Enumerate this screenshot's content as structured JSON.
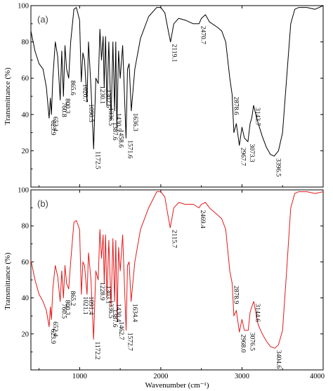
{
  "figure": {
    "x_axis_title": "Wavenumber (cm⁻¹)",
    "y_axis_title": "Transmittance (%)",
    "x_ticks": [
      "1000",
      "2000",
      "3000",
      "4000"
    ],
    "y_ticks_top": [
      "20",
      "40",
      "60",
      "80",
      "100"
    ],
    "y_ticks_bottom": [
      "20",
      "40",
      "60",
      "80",
      "100"
    ]
  },
  "chart_data": [
    {
      "type": "line",
      "panel_label": "(a)",
      "xlim": [
        400,
        4000
      ],
      "ylim": [
        0,
        100
      ],
      "line_color": "#000000",
      "grid": false,
      "series": [
        {
          "x": [
            400,
            450,
            500,
            550,
            590,
            623.9,
            640,
            652.4,
            670,
            700,
            730,
            760.8,
            780,
            800.3,
            820,
            840,
            865.6,
            890,
            930,
            960,
            1000,
            1020.7,
            1040,
            1060,
            1090.5,
            1110,
            1140,
            1172.5,
            1200,
            1230.1,
            1250,
            1270,
            1290,
            1302.6,
            1320,
            1336.5,
            1360,
            1387.6,
            1410,
            1430.5,
            1445,
            1458.6,
            1480,
            1500,
            1530,
            1571.6,
            1590,
            1610,
            1636.3,
            1680,
            1750,
            1850,
            1950,
            2000,
            2050,
            2080,
            2119.1,
            2160,
            2220,
            2300,
            2400,
            2470.7,
            2500,
            2550,
            2600,
            2700,
            2750,
            2800,
            2850,
            2878.6,
            2900,
            2930,
            2967.7,
            3000,
            3030,
            3073.3,
            3100,
            3120,
            3143.7,
            3170,
            3200,
            3250,
            3300,
            3350,
            3396.5,
            3450,
            3500,
            3550,
            3600,
            3650,
            3700,
            3800,
            3900,
            4000
          ],
          "y": [
            86,
            75,
            68,
            65,
            55,
            38,
            49,
            40,
            60,
            80,
            72,
            48,
            75,
            50,
            78,
            65,
            60,
            80,
            98,
            99,
            92,
            58,
            74,
            70,
            47,
            80,
            55,
            21,
            60,
            57,
            87,
            70,
            83,
            55,
            83,
            45,
            80,
            37,
            80,
            42,
            80,
            33,
            75,
            60,
            78,
            27,
            65,
            68,
            42,
            65,
            82,
            94,
            99,
            99,
            96,
            89,
            80,
            90,
            93,
            92,
            90,
            90,
            93,
            95,
            91,
            88,
            86,
            80,
            60,
            51,
            30,
            35,
            23,
            33,
            27,
            25,
            35,
            38,
            45,
            40,
            35,
            28,
            22,
            18,
            17,
            20,
            30,
            60,
            90,
            98,
            99,
            99,
            98,
            100
          ]
        }
      ],
      "annotations": [
        "623.9",
        "652.4",
        "760.8",
        "800.3",
        "865.6",
        "1020.7",
        "1090.5",
        "1172.5",
        "1230.1",
        "1302.6",
        "1336.5",
        "1387.6",
        "1430.5",
        "1458.6",
        "1571.6",
        "1636.3",
        "2119.1",
        "2470.7",
        "2878.6",
        "2967.7",
        "3073.3",
        "3143.7",
        "3396.5"
      ]
    },
    {
      "type": "line",
      "panel_label": "(b)",
      "xlim": [
        400,
        4000
      ],
      "ylim": [
        0,
        100
      ],
      "line_color": "#e41a1c",
      "grid": false,
      "series": [
        {
          "x": [
            400,
            450,
            500,
            550,
            590,
            623.9,
            640,
            652.4,
            670,
            700,
            730,
            760.5,
            780,
            800.3,
            820,
            840,
            865.2,
            890,
            930,
            960,
            1000,
            1021.1,
            1040,
            1060,
            1091.4,
            1110,
            1140,
            1172.2,
            1200,
            1228.9,
            1250,
            1270,
            1290,
            1303.1,
            1320,
            1336.5,
            1360,
            1387.6,
            1410,
            1430.4,
            1445,
            1462.7,
            1480,
            1500,
            1530,
            1572.7,
            1590,
            1610,
            1634.4,
            1680,
            1750,
            1850,
            1950,
            2000,
            2050,
            2080,
            2115.7,
            2160,
            2220,
            2300,
            2400,
            2469.4,
            2500,
            2550,
            2600,
            2700,
            2750,
            2800,
            2850,
            2878.9,
            2900,
            2930,
            2968.0,
            3000,
            3030,
            3076.5,
            3100,
            3120,
            3144.6,
            3170,
            3200,
            3250,
            3300,
            3350,
            3404.6,
            3450,
            3500,
            3550,
            3600,
            3650,
            3700,
            3800,
            3900,
            4000
          ],
          "y": [
            61,
            50,
            42,
            38,
            33,
            24,
            35,
            28,
            45,
            58,
            52,
            38,
            55,
            40,
            58,
            48,
            45,
            60,
            82,
            83,
            78,
            42,
            60,
            58,
            42,
            65,
            50,
            17,
            55,
            50,
            78,
            62,
            75,
            48,
            75,
            40,
            72,
            35,
            73,
            38,
            72,
            28,
            68,
            55,
            75,
            22,
            58,
            60,
            38,
            60,
            78,
            90,
            99,
            99,
            96,
            88,
            79,
            90,
            93,
            92,
            92,
            90,
            92,
            93,
            90,
            86,
            84,
            78,
            55,
            48,
            30,
            33,
            21,
            28,
            22,
            22,
            32,
            35,
            38,
            32,
            25,
            20,
            16,
            13,
            12,
            14,
            22,
            55,
            90,
            98,
            99,
            99,
            98,
            99
          ]
        }
      ],
      "annotations": [
        "623.9",
        "652.4",
        "760.5",
        "800.3",
        "865.2",
        "1021.1",
        "1091.4",
        "1172.2",
        "1228.9",
        "1303.1",
        "1336.5",
        "1387.6",
        "1430.4",
        "1462.7",
        "1572.7",
        "1634.4",
        "2115.7",
        "2469.4",
        "2878.9",
        "2968.0",
        "3076.5",
        "3144.6",
        "3404.6"
      ]
    }
  ]
}
